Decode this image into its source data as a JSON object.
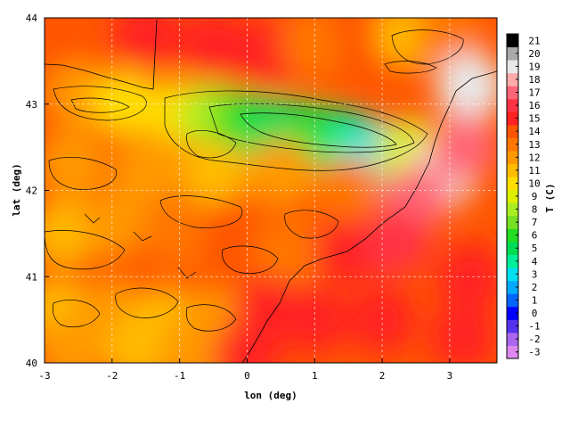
{
  "chart_data": {
    "type": "heatmap",
    "title": "",
    "xlabel": "lon (deg)",
    "ylabel": "lat (deg)",
    "colorbar_label": "T (C)",
    "xlim": [
      -3,
      3.7
    ],
    "ylim": [
      40,
      44
    ],
    "x_ticks": [
      -3,
      -2,
      -1,
      0,
      1,
      2,
      3
    ],
    "y_ticks": [
      40,
      41,
      42,
      43,
      44
    ],
    "x_tick_labels": [
      "-3",
      "-2",
      "-1",
      "0",
      "1",
      "2",
      "3"
    ],
    "y_tick_labels": [
      "40",
      "41",
      "42",
      "43",
      "44"
    ],
    "colorbar_ticks": [
      21,
      20,
      19,
      18,
      17,
      16,
      15,
      14,
      13,
      12,
      11,
      10,
      9,
      8,
      7,
      6,
      5,
      4,
      3,
      2,
      1,
      0,
      -1,
      -2,
      -3
    ],
    "colorbar_tick_labels": [
      "21",
      "20",
      "19",
      "18",
      "17",
      "16",
      "15",
      "14",
      "13",
      "12",
      "11",
      "10",
      "9",
      "8",
      "7",
      "6",
      "5",
      "4",
      "3",
      "2",
      "1",
      "0",
      "-1",
      "-2",
      "-3"
    ],
    "color_range": [
      -3,
      21
    ],
    "grid": true,
    "colorbar_position": "right",
    "colormap": [
      {
        "value": -3,
        "color": "#dd88ee"
      },
      {
        "value": -2,
        "color": "#aa66ee"
      },
      {
        "value": -1,
        "color": "#5533ee"
      },
      {
        "value": 0,
        "color": "#0000ff"
      },
      {
        "value": 1,
        "color": "#0066ff"
      },
      {
        "value": 2,
        "color": "#00aaff"
      },
      {
        "value": 3,
        "color": "#00e0ee"
      },
      {
        "value": 4,
        "color": "#00ee99"
      },
      {
        "value": 5,
        "color": "#00dd55"
      },
      {
        "value": 6,
        "color": "#22dd22"
      },
      {
        "value": 7,
        "color": "#77e022"
      },
      {
        "value": 8,
        "color": "#aaee22"
      },
      {
        "value": 9,
        "color": "#ddee00"
      },
      {
        "value": 10,
        "color": "#ffdd00"
      },
      {
        "value": 11,
        "color": "#ffbb00"
      },
      {
        "value": 12,
        "color": "#ff9900"
      },
      {
        "value": 13,
        "color": "#ff7700"
      },
      {
        "value": 14,
        "color": "#ff5500"
      },
      {
        "value": 15,
        "color": "#ff2222"
      },
      {
        "value": 16,
        "color": "#ff3344"
      },
      {
        "value": 17,
        "color": "#ff6677"
      },
      {
        "value": 18,
        "color": "#ffaaaa"
      },
      {
        "value": 19,
        "color": "#e8e8e8"
      },
      {
        "value": 20,
        "color": "#aaaaaa"
      },
      {
        "value": 21,
        "color": "#000000"
      }
    ],
    "field_points": [
      {
        "lon": -2.7,
        "lat": 43.6,
        "t": 14.5
      },
      {
        "lon": -1.5,
        "lat": 43.8,
        "t": 15
      },
      {
        "lon": -0.5,
        "lat": 43.7,
        "t": 15
      },
      {
        "lon": 0.3,
        "lat": 43.6,
        "t": 15.2
      },
      {
        "lon": 1.0,
        "lat": 43.7,
        "t": 13.5
      },
      {
        "lon": 1.8,
        "lat": 43.8,
        "t": 14.5
      },
      {
        "lon": 2.4,
        "lat": 43.8,
        "t": 11
      },
      {
        "lon": 3.0,
        "lat": 43.8,
        "t": 13
      },
      {
        "lon": 3.3,
        "lat": 43.2,
        "t": 19
      },
      {
        "lon": -2.5,
        "lat": 43.1,
        "t": 12
      },
      {
        "lon": -1.8,
        "lat": 43.0,
        "t": 10.5
      },
      {
        "lon": -1.0,
        "lat": 42.9,
        "t": 10
      },
      {
        "lon": -0.5,
        "lat": 42.85,
        "t": 8
      },
      {
        "lon": 0.0,
        "lat": 42.75,
        "t": 6
      },
      {
        "lon": 0.4,
        "lat": 42.7,
        "t": 5
      },
      {
        "lon": 0.8,
        "lat": 42.65,
        "t": 5
      },
      {
        "lon": 1.2,
        "lat": 42.6,
        "t": 6
      },
      {
        "lon": 1.6,
        "lat": 42.5,
        "t": 4
      },
      {
        "lon": 2.0,
        "lat": 42.4,
        "t": 3
      },
      {
        "lon": 2.4,
        "lat": 42.45,
        "t": 9
      },
      {
        "lon": 2.9,
        "lat": 42.2,
        "t": 19
      },
      {
        "lon": 3.2,
        "lat": 42.5,
        "t": 17.5
      },
      {
        "lon": -2.6,
        "lat": 42.3,
        "t": 12
      },
      {
        "lon": -1.5,
        "lat": 42.2,
        "t": 12.5
      },
      {
        "lon": -0.5,
        "lat": 42.2,
        "t": 11.5
      },
      {
        "lon": 0.5,
        "lat": 42.2,
        "t": 12
      },
      {
        "lon": 1.5,
        "lat": 42.0,
        "t": 13
      },
      {
        "lon": 2.5,
        "lat": 41.9,
        "t": 17.5
      },
      {
        "lon": -2.7,
        "lat": 41.5,
        "t": 11
      },
      {
        "lon": -2.0,
        "lat": 41.6,
        "t": 12
      },
      {
        "lon": -1.0,
        "lat": 41.5,
        "t": 13.5
      },
      {
        "lon": -0.2,
        "lat": 41.5,
        "t": 14
      },
      {
        "lon": 0.6,
        "lat": 41.3,
        "t": 13.5
      },
      {
        "lon": 1.5,
        "lat": 41.3,
        "t": 15.2
      },
      {
        "lon": 2.2,
        "lat": 41.4,
        "t": 16
      },
      {
        "lon": 3.3,
        "lat": 41.0,
        "t": 15.5
      },
      {
        "lon": -2.8,
        "lat": 40.6,
        "t": 11.5
      },
      {
        "lon": -2.0,
        "lat": 40.6,
        "t": 12
      },
      {
        "lon": -1.2,
        "lat": 40.5,
        "t": 11
      },
      {
        "lon": -0.5,
        "lat": 40.5,
        "t": 12.5
      },
      {
        "lon": 0.3,
        "lat": 40.6,
        "t": 15
      },
      {
        "lon": 1.0,
        "lat": 40.5,
        "t": 15.5
      },
      {
        "lon": 2.0,
        "lat": 40.5,
        "t": 15.4
      },
      {
        "lon": 3.2,
        "lat": 40.3,
        "t": 15.4
      },
      {
        "lon": -2.6,
        "lat": 40.15,
        "t": 12
      },
      {
        "lon": -1.6,
        "lat": 40.15,
        "t": 11.5
      },
      {
        "lon": -0.8,
        "lat": 40.15,
        "t": 12.5
      },
      {
        "lon": 0.0,
        "lat": 40.1,
        "t": 15
      }
    ]
  }
}
